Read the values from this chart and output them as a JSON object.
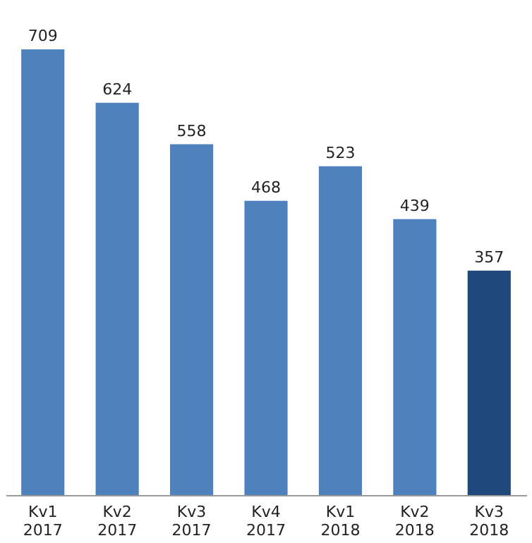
{
  "chart_data": {
    "type": "bar",
    "categories": [
      "Kv1 2017",
      "Kv2 2017",
      "Kv3 2017",
      "Kv4 2017",
      "Kv1 2018",
      "Kv2 2018",
      "Kv3 2018"
    ],
    "values": [
      709,
      624,
      558,
      468,
      523,
      439,
      357
    ],
    "colors": [
      "#4f81bd",
      "#4f81bd",
      "#4f81bd",
      "#4f81bd",
      "#4f81bd",
      "#4f81bd",
      "#1f497d"
    ],
    "data_labels": true
  }
}
